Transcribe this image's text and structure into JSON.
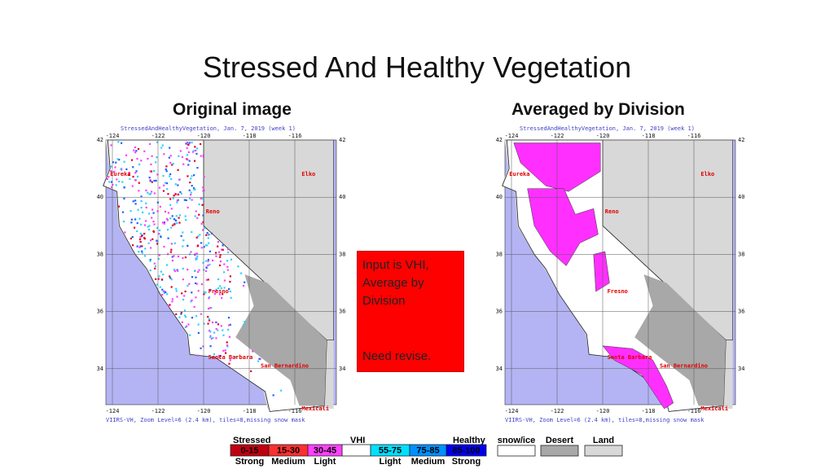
{
  "slide": {
    "title": "Stressed And Healthy Vegetation",
    "panels": [
      {
        "heading": "Original image"
      },
      {
        "heading": "Averaged by Division"
      }
    ],
    "map": {
      "header": "StressedAndHealthyVegetation, Jan. 7, 2019 (week 1)",
      "footer": "VIIRS-VH, Zoom Level=6 (2.4 km), tiles=8,missing snow mask",
      "lon_ticks": [
        -124,
        -122,
        -120,
        -118,
        -116
      ],
      "lat_ticks": [
        42,
        40,
        38,
        36,
        34
      ],
      "cities": [
        {
          "label": "Eureka"
        },
        {
          "label": "Elko"
        },
        {
          "label": "Reno"
        },
        {
          "label": "Fresno"
        },
        {
          "label": "Santa Barbara"
        },
        {
          "label": "San Bernardino"
        },
        {
          "label": "Mexicali"
        }
      ]
    },
    "note": {
      "lines": [
        "Input is VHI, Average by Division",
        "Need revise."
      ]
    },
    "legend": {
      "stressed": "Stressed",
      "vhi": "VHI",
      "healthy": "Healthy",
      "classes": [
        {
          "range": "0-15",
          "strength": "Strong",
          "color": "#c00010"
        },
        {
          "range": "15-30",
          "strength": "Medium",
          "color": "#ff3030"
        },
        {
          "range": "30-45",
          "strength": "Light",
          "color": "#ff40ff"
        },
        {
          "range": "55-75",
          "strength": "Light",
          "color": "#00e0ff"
        },
        {
          "range": "75-85",
          "strength": "Medium",
          "color": "#0090ff"
        },
        {
          "range": "85-100",
          "strength": "Strong",
          "color": "#0000f0"
        }
      ],
      "masks": [
        {
          "label": "snow/ice",
          "color": "#ffffff"
        },
        {
          "label": "Desert",
          "color": "#a8a8a8"
        },
        {
          "label": "Land",
          "color": "#d8d8d8"
        }
      ]
    }
  }
}
